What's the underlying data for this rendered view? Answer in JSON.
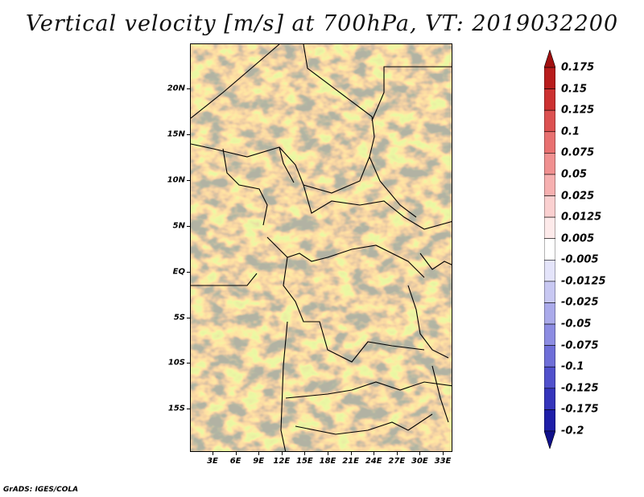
{
  "title": "Vertical velocity [m/s] at 700hPa, VT: 2019032200",
  "credit": "GrADS: IGES/COLA",
  "map": {
    "lat_labels": [
      "20N",
      "15N",
      "10N",
      "5N",
      "EQ",
      "5S",
      "10S",
      "15S"
    ],
    "lon_labels": [
      "3E",
      "6E",
      "9E",
      "12E",
      "15E",
      "18E",
      "21E",
      "24E",
      "27E",
      "30E",
      "33E"
    ]
  },
  "colorbar": {
    "labels": [
      "0.175",
      "0.15",
      "0.125",
      "0.1",
      "0.075",
      "0.05",
      "0.025",
      "0.0125",
      "0.005",
      "-0.005",
      "-0.0125",
      "-0.025",
      "-0.05",
      "-0.075",
      "-0.1",
      "-0.125",
      "-0.175",
      "-0.2"
    ],
    "colors": [
      "#a01010",
      "#b81c1c",
      "#cc3030",
      "#dc5050",
      "#e87070",
      "#f09090",
      "#f6b0b0",
      "#fad0d0",
      "#fdeaea",
      "#ffffff",
      "#e4e4fa",
      "#c8c8f2",
      "#aaaaea",
      "#8c8ce2",
      "#6e6ed8",
      "#5050cc",
      "#3434bb",
      "#1e1ea8",
      "#10108a"
    ]
  }
}
